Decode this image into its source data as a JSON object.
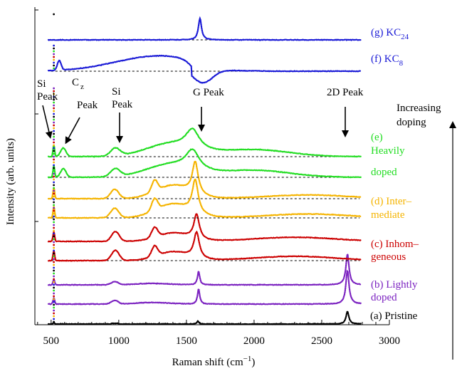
{
  "chart_data": {
    "type": "line",
    "title": "",
    "xlabel": "Raman shift (cm",
    "xlabel_sup": "−1",
    "xlabel_close": ")",
    "ylabel": "Intensity (arb. units)",
    "xlim": [
      380,
      3000
    ],
    "x_ticks": [
      "500",
      "1000",
      "1500",
      "2000",
      "2500",
      "3000"
    ],
    "x_tick_values": [
      500,
      1000,
      1500,
      2000,
      2500,
      3000
    ],
    "grid": false,
    "peak_annotations": [
      {
        "lines": [
          "Si",
          "Peak"
        ],
        "x": 500
      },
      {
        "lines": [
          "C",
          "Peak"
        ],
        "sub": "z",
        "x": 590
      },
      {
        "lines": [
          "Si",
          "Peak"
        ],
        "x": 960
      },
      {
        "lines": [
          "G Peak"
        ],
        "x": 1590
      },
      {
        "lines": [
          "2D Peak"
        ],
        "x": 2680
      }
    ],
    "increasing_doping_label": [
      "Increasing",
      "doping"
    ],
    "series": [
      {
        "key": "a",
        "label_parts": [
          "(a) Pristine"
        ],
        "color": "#000000",
        "style": "pristine"
      },
      {
        "key": "b",
        "label_parts": [
          "(b) Lightly",
          "doped"
        ],
        "color": "#7b22c0",
        "style": "light"
      },
      {
        "key": "c",
        "label_parts": [
          "(c) Inhom–",
          "geneous"
        ],
        "color": "#cc0000",
        "style": "inhom"
      },
      {
        "key": "d",
        "label_parts": [
          "(d) Inter–",
          "mediate"
        ],
        "color": "#f5b400",
        "style": "inter"
      },
      {
        "key": "e",
        "label_parts": [
          "(e)",
          "Heavily",
          "doped"
        ],
        "color": "#22dd22",
        "style": "heavy"
      },
      {
        "key": "f",
        "label_main": "(f) KC",
        "label_sub": "8",
        "color": "#1a1ad6",
        "style": "kc8"
      },
      {
        "key": "g",
        "label_main": "(g) KC",
        "label_sub": "24",
        "color": "#1a1ad6",
        "style": "kc24"
      }
    ]
  }
}
